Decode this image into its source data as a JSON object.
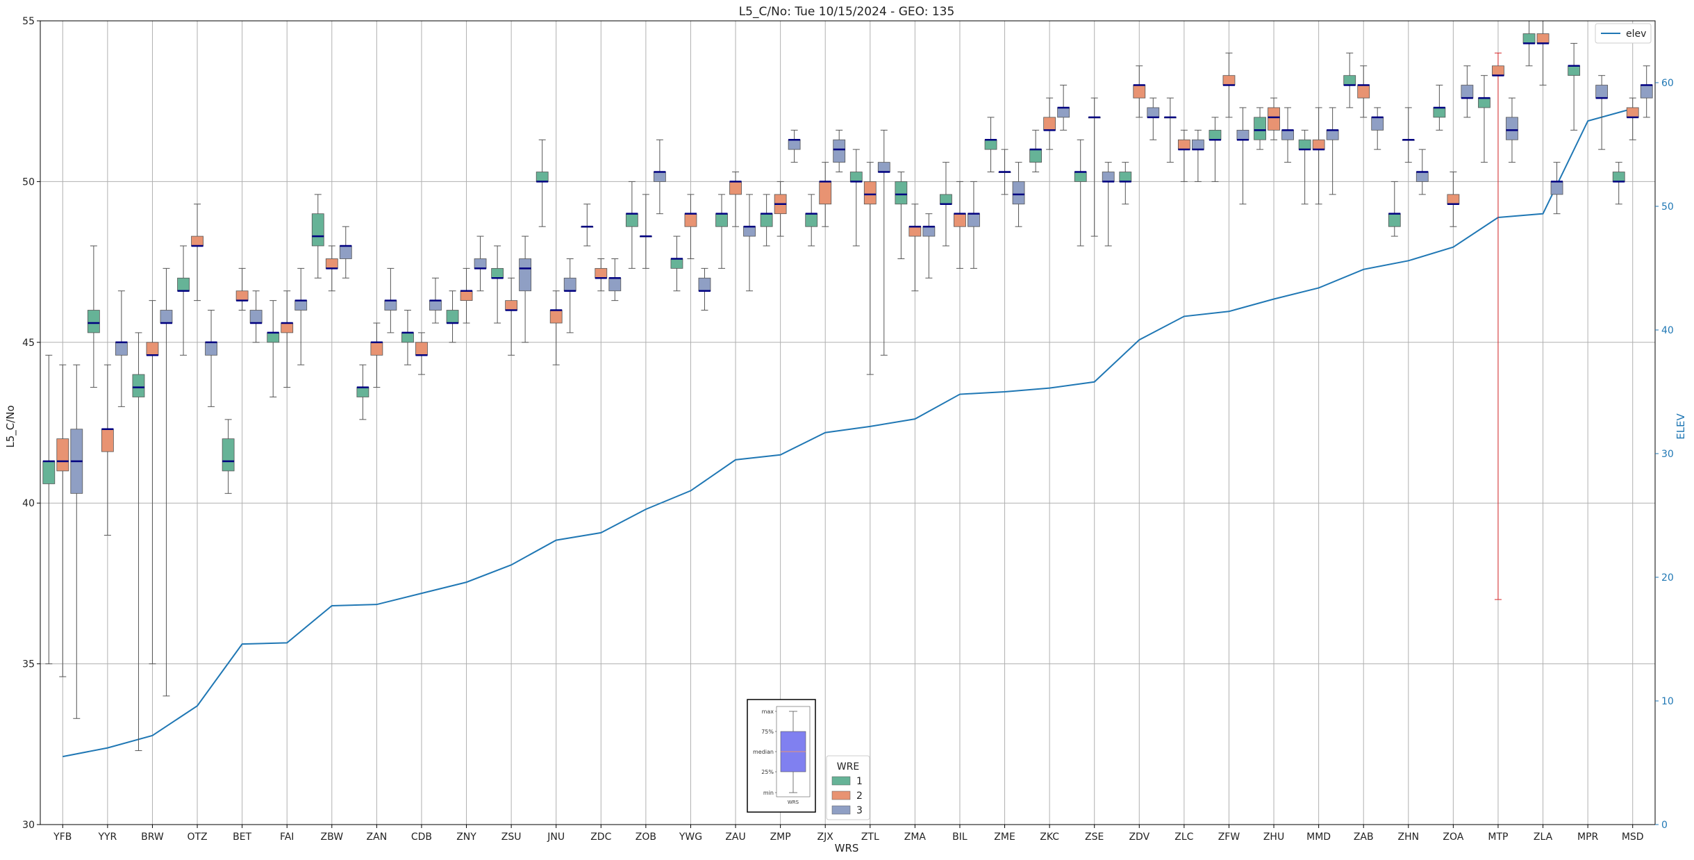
{
  "chart_data": {
    "type": "box",
    "title": "L5_C/No: Tue 10/15/2024 - GEO: 135",
    "xlabel": "WRS",
    "ylabel": "L5_C/No",
    "y2label": "ELEV",
    "ylim": [
      30,
      55
    ],
    "y2lim": [
      0,
      65
    ],
    "yticks": [
      30,
      35,
      40,
      45,
      50,
      55
    ],
    "y2ticks": [
      0,
      10,
      20,
      30,
      40,
      50,
      60
    ],
    "grid": true,
    "categories": [
      "YFB",
      "YYR",
      "BRW",
      "OTZ",
      "BET",
      "FAI",
      "ZBW",
      "ZAN",
      "CDB",
      "ZNY",
      "ZSU",
      "JNU",
      "ZDC",
      "ZOB",
      "YWG",
      "ZAU",
      "ZMP",
      "ZJX",
      "ZTL",
      "ZMA",
      "BIL",
      "ZME",
      "ZKC",
      "ZSE",
      "ZDV",
      "ZLC",
      "ZFW",
      "ZHU",
      "MMD",
      "ZAB",
      "ZHN",
      "ZOA",
      "MTP",
      "ZLA",
      "MPR",
      "MSD"
    ],
    "colors": {
      "1": "#66b397",
      "2": "#e89372",
      "3": "#8f9fc4",
      "elev": "#1f77b4",
      "median": "#000080",
      "whisker": "#555555",
      "outlier_whisker": "#d62728"
    },
    "box_legend": {
      "title": "WRE",
      "entries": [
        "1",
        "2",
        "3"
      ],
      "placement": "bottom-center"
    },
    "line_legend": {
      "entries": [
        "elev"
      ],
      "placement": "top-right"
    },
    "inset_legend": {
      "labels": [
        "max",
        "75%",
        "median",
        "25%",
        "min"
      ],
      "xlabel": "WRS"
    },
    "elev": [
      5.5,
      6.2,
      7.2,
      9.6,
      14.6,
      14.7,
      17.7,
      17.8,
      18.7,
      19.6,
      21.0,
      23.0,
      23.6,
      25.5,
      27.0,
      29.5,
      29.9,
      31.7,
      32.2,
      32.8,
      34.8,
      35.0,
      35.3,
      35.8,
      39.2,
      41.1,
      41.5,
      42.5,
      43.4,
      44.9,
      45.6,
      46.7,
      49.1,
      49.4,
      56.9,
      57.9
    ],
    "boxes": [
      {
        "site": "YFB",
        "wre": 1,
        "min": 35.0,
        "q1": 40.6,
        "med": 41.3,
        "q3": 41.3,
        "max": 44.6
      },
      {
        "site": "YFB",
        "wre": 2,
        "min": 34.6,
        "q1": 41.0,
        "med": 41.3,
        "q3": 42.0,
        "max": 44.3
      },
      {
        "site": "YFB",
        "wre": 3,
        "min": 33.3,
        "q1": 40.3,
        "med": 41.3,
        "q3": 42.3,
        "max": 44.3
      },
      {
        "site": "YYR",
        "wre": 1,
        "min": 43.6,
        "q1": 45.3,
        "med": 45.6,
        "q3": 46.0,
        "max": 48.0
      },
      {
        "site": "YYR",
        "wre": 2,
        "min": 39.0,
        "q1": 41.6,
        "med": 42.3,
        "q3": 42.3,
        "max": 44.3
      },
      {
        "site": "YYR",
        "wre": 3,
        "min": 43.0,
        "q1": 44.6,
        "med": 45.0,
        "q3": 45.0,
        "max": 46.6
      },
      {
        "site": "BRW",
        "wre": 1,
        "min": 32.3,
        "q1": 43.3,
        "med": 43.6,
        "q3": 44.0,
        "max": 45.3
      },
      {
        "site": "BRW",
        "wre": 2,
        "min": 35.0,
        "q1": 44.6,
        "med": 44.6,
        "q3": 45.0,
        "max": 46.3
      },
      {
        "site": "BRW",
        "wre": 3,
        "min": 34.0,
        "q1": 45.6,
        "med": 45.6,
        "q3": 46.0,
        "max": 47.3
      },
      {
        "site": "OTZ",
        "wre": 1,
        "min": 44.6,
        "q1": 46.6,
        "med": 46.6,
        "q3": 47.0,
        "max": 48.0
      },
      {
        "site": "OTZ",
        "wre": 2,
        "min": 46.3,
        "q1": 48.0,
        "med": 48.0,
        "q3": 48.3,
        "max": 49.3
      },
      {
        "site": "OTZ",
        "wre": 3,
        "min": 43.0,
        "q1": 44.6,
        "med": 45.0,
        "q3": 45.0,
        "max": 46.0
      },
      {
        "site": "BET",
        "wre": 1,
        "min": 40.3,
        "q1": 41.0,
        "med": 41.3,
        "q3": 42.0,
        "max": 42.6
      },
      {
        "site": "BET",
        "wre": 2,
        "min": 46.0,
        "q1": 46.3,
        "med": 46.3,
        "q3": 46.6,
        "max": 47.3
      },
      {
        "site": "BET",
        "wre": 3,
        "min": 45.0,
        "q1": 45.6,
        "med": 45.6,
        "q3": 46.0,
        "max": 46.6
      },
      {
        "site": "FAI",
        "wre": 1,
        "min": 43.3,
        "q1": 45.0,
        "med": 45.3,
        "q3": 45.3,
        "max": 46.3
      },
      {
        "site": "FAI",
        "wre": 2,
        "min": 43.6,
        "q1": 45.3,
        "med": 45.6,
        "q3": 45.6,
        "max": 46.6
      },
      {
        "site": "FAI",
        "wre": 3,
        "min": 44.3,
        "q1": 46.0,
        "med": 46.3,
        "q3": 46.3,
        "max": 47.3
      },
      {
        "site": "ZBW",
        "wre": 1,
        "min": 47.0,
        "q1": 48.0,
        "med": 48.3,
        "q3": 49.0,
        "max": 49.6
      },
      {
        "site": "ZBW",
        "wre": 2,
        "min": 46.6,
        "q1": 47.3,
        "med": 47.3,
        "q3": 47.6,
        "max": 48.0
      },
      {
        "site": "ZBW",
        "wre": 3,
        "min": 47.0,
        "q1": 47.6,
        "med": 48.0,
        "q3": 48.0,
        "max": 48.6
      },
      {
        "site": "ZAN",
        "wre": 1,
        "min": 42.6,
        "q1": 43.3,
        "med": 43.6,
        "q3": 43.6,
        "max": 44.3
      },
      {
        "site": "ZAN",
        "wre": 2,
        "min": 43.6,
        "q1": 44.6,
        "med": 45.0,
        "q3": 45.0,
        "max": 45.6
      },
      {
        "site": "ZAN",
        "wre": 3,
        "min": 45.3,
        "q1": 46.0,
        "med": 46.3,
        "q3": 46.3,
        "max": 47.3
      },
      {
        "site": "CDB",
        "wre": 1,
        "min": 44.3,
        "q1": 45.0,
        "med": 45.3,
        "q3": 45.3,
        "max": 46.0
      },
      {
        "site": "CDB",
        "wre": 2,
        "min": 44.0,
        "q1": 44.6,
        "med": 44.6,
        "q3": 45.0,
        "max": 45.3
      },
      {
        "site": "CDB",
        "wre": 3,
        "min": 45.6,
        "q1": 46.0,
        "med": 46.3,
        "q3": 46.3,
        "max": 47.0
      },
      {
        "site": "ZNY",
        "wre": 1,
        "min": 45.0,
        "q1": 45.6,
        "med": 45.6,
        "q3": 46.0,
        "max": 46.6
      },
      {
        "site": "ZNY",
        "wre": 2,
        "min": 45.6,
        "q1": 46.3,
        "med": 46.6,
        "q3": 46.6,
        "max": 47.3
      },
      {
        "site": "ZNY",
        "wre": 3,
        "min": 46.6,
        "q1": 47.3,
        "med": 47.3,
        "q3": 47.6,
        "max": 48.3
      },
      {
        "site": "ZSU",
        "wre": 1,
        "min": 45.6,
        "q1": 47.0,
        "med": 47.0,
        "q3": 47.3,
        "max": 48.0
      },
      {
        "site": "ZSU",
        "wre": 2,
        "min": 44.6,
        "q1": 46.0,
        "med": 46.0,
        "q3": 46.3,
        "max": 47.0
      },
      {
        "site": "ZSU",
        "wre": 3,
        "min": 45.0,
        "q1": 46.6,
        "med": 47.3,
        "q3": 47.6,
        "max": 48.3
      },
      {
        "site": "JNU",
        "wre": 1,
        "min": 48.6,
        "q1": 50.0,
        "med": 50.0,
        "q3": 50.3,
        "max": 51.3
      },
      {
        "site": "JNU",
        "wre": 2,
        "min": 44.3,
        "q1": 45.6,
        "med": 46.0,
        "q3": 46.0,
        "max": 46.6
      },
      {
        "site": "JNU",
        "wre": 3,
        "min": 45.3,
        "q1": 46.6,
        "med": 46.6,
        "q3": 47.0,
        "max": 47.6
      },
      {
        "site": "ZDC",
        "wre": 1,
        "min": 48.0,
        "q1": 48.6,
        "med": 48.6,
        "q3": 48.6,
        "max": 49.3
      },
      {
        "site": "ZDC",
        "wre": 2,
        "min": 46.6,
        "q1": 47.0,
        "med": 47.0,
        "q3": 47.3,
        "max": 47.6
      },
      {
        "site": "ZDC",
        "wre": 3,
        "min": 46.3,
        "q1": 46.6,
        "med": 47.0,
        "q3": 47.0,
        "max": 47.6
      },
      {
        "site": "ZOB",
        "wre": 1,
        "min": 47.3,
        "q1": 48.6,
        "med": 49.0,
        "q3": 49.0,
        "max": 50.0
      },
      {
        "site": "ZOB",
        "wre": 2,
        "min": 47.3,
        "q1": 48.3,
        "med": 48.3,
        "q3": 48.3,
        "max": 49.6
      },
      {
        "site": "ZOB",
        "wre": 3,
        "min": 49.0,
        "q1": 50.0,
        "med": 50.3,
        "q3": 50.3,
        "max": 51.3
      },
      {
        "site": "YWG",
        "wre": 1,
        "min": 46.6,
        "q1": 47.3,
        "med": 47.6,
        "q3": 47.6,
        "max": 48.3
      },
      {
        "site": "YWG",
        "wre": 2,
        "min": 47.6,
        "q1": 48.6,
        "med": 49.0,
        "q3": 49.0,
        "max": 49.6
      },
      {
        "site": "YWG",
        "wre": 3,
        "min": 46.0,
        "q1": 46.6,
        "med": 46.6,
        "q3": 47.0,
        "max": 47.3
      },
      {
        "site": "ZAU",
        "wre": 1,
        "min": 47.3,
        "q1": 48.6,
        "med": 49.0,
        "q3": 49.0,
        "max": 49.6
      },
      {
        "site": "ZAU",
        "wre": 2,
        "min": 48.6,
        "q1": 49.6,
        "med": 50.0,
        "q3": 50.0,
        "max": 50.3
      },
      {
        "site": "ZAU",
        "wre": 3,
        "min": 46.6,
        "q1": 48.3,
        "med": 48.6,
        "q3": 48.6,
        "max": 49.6
      },
      {
        "site": "ZMP",
        "wre": 1,
        "min": 48.0,
        "q1": 48.6,
        "med": 49.0,
        "q3": 49.0,
        "max": 49.6
      },
      {
        "site": "ZMP",
        "wre": 2,
        "min": 48.3,
        "q1": 49.0,
        "med": 49.3,
        "q3": 49.6,
        "max": 50.0
      },
      {
        "site": "ZMP",
        "wre": 3,
        "min": 50.6,
        "q1": 51.0,
        "med": 51.3,
        "q3": 51.3,
        "max": 51.6
      },
      {
        "site": "ZJX",
        "wre": 1,
        "min": 48.0,
        "q1": 48.6,
        "med": 49.0,
        "q3": 49.0,
        "max": 49.6
      },
      {
        "site": "ZJX",
        "wre": 2,
        "min": 48.6,
        "q1": 49.3,
        "med": 50.0,
        "q3": 50.0,
        "max": 50.6
      },
      {
        "site": "ZJX",
        "wre": 3,
        "min": 50.3,
        "q1": 50.6,
        "med": 51.0,
        "q3": 51.3,
        "max": 51.6
      },
      {
        "site": "ZTL",
        "wre": 1,
        "min": 48.0,
        "q1": 50.0,
        "med": 50.0,
        "q3": 50.3,
        "max": 51.0
      },
      {
        "site": "ZTL",
        "wre": 2,
        "min": 44.0,
        "q1": 49.3,
        "med": 49.6,
        "q3": 50.0,
        "max": 50.6
      },
      {
        "site": "ZTL",
        "wre": 3,
        "min": 44.6,
        "q1": 50.3,
        "med": 50.3,
        "q3": 50.6,
        "max": 51.6
      },
      {
        "site": "ZMA",
        "wre": 1,
        "min": 47.6,
        "q1": 49.3,
        "med": 49.6,
        "q3": 50.0,
        "max": 50.3
      },
      {
        "site": "ZMA",
        "wre": 2,
        "min": 46.6,
        "q1": 48.3,
        "med": 48.6,
        "q3": 48.6,
        "max": 49.3
      },
      {
        "site": "ZMA",
        "wre": 3,
        "min": 47.0,
        "q1": 48.3,
        "med": 48.6,
        "q3": 48.6,
        "max": 49.0
      },
      {
        "site": "BIL",
        "wre": 1,
        "min": 48.0,
        "q1": 49.3,
        "med": 49.3,
        "q3": 49.6,
        "max": 50.6
      },
      {
        "site": "BIL",
        "wre": 2,
        "min": 47.3,
        "q1": 48.6,
        "med": 49.0,
        "q3": 49.0,
        "max": 50.0
      },
      {
        "site": "BIL",
        "wre": 3,
        "min": 47.3,
        "q1": 48.6,
        "med": 49.0,
        "q3": 49.0,
        "max": 50.0
      },
      {
        "site": "ZME",
        "wre": 1,
        "min": 50.3,
        "q1": 51.0,
        "med": 51.3,
        "q3": 51.3,
        "max": 52.0
      },
      {
        "site": "ZME",
        "wre": 2,
        "min": 49.6,
        "q1": 50.3,
        "med": 50.3,
        "q3": 50.3,
        "max": 51.0
      },
      {
        "site": "ZME",
        "wre": 3,
        "min": 48.6,
        "q1": 49.3,
        "med": 49.6,
        "q3": 50.0,
        "max": 50.6
      },
      {
        "site": "ZKC",
        "wre": 1,
        "min": 50.3,
        "q1": 50.6,
        "med": 51.0,
        "q3": 51.0,
        "max": 51.6
      },
      {
        "site": "ZKC",
        "wre": 2,
        "min": 51.0,
        "q1": 51.6,
        "med": 51.6,
        "q3": 52.0,
        "max": 52.6
      },
      {
        "site": "ZKC",
        "wre": 3,
        "min": 51.6,
        "q1": 52.0,
        "med": 52.3,
        "q3": 52.3,
        "max": 53.0
      },
      {
        "site": "ZSE",
        "wre": 1,
        "min": 48.0,
        "q1": 50.0,
        "med": 50.3,
        "q3": 50.3,
        "max": 51.3
      },
      {
        "site": "ZSE",
        "wre": 2,
        "min": 48.3,
        "q1": 52.0,
        "med": 52.0,
        "q3": 52.0,
        "max": 52.6
      },
      {
        "site": "ZSE",
        "wre": 3,
        "min": 48.0,
        "q1": 50.0,
        "med": 50.0,
        "q3": 50.3,
        "max": 50.6
      },
      {
        "site": "ZDV",
        "wre": 1,
        "min": 49.3,
        "q1": 50.0,
        "med": 50.0,
        "q3": 50.3,
        "max": 50.6
      },
      {
        "site": "ZDV",
        "wre": 2,
        "min": 52.0,
        "q1": 52.6,
        "med": 53.0,
        "q3": 53.0,
        "max": 53.6
      },
      {
        "site": "ZDV",
        "wre": 3,
        "min": 51.3,
        "q1": 52.0,
        "med": 52.0,
        "q3": 52.3,
        "max": 52.6
      },
      {
        "site": "ZLC",
        "wre": 1,
        "min": 50.6,
        "q1": 52.0,
        "med": 52.0,
        "q3": 52.0,
        "max": 52.6
      },
      {
        "site": "ZLC",
        "wre": 2,
        "min": 50.0,
        "q1": 51.0,
        "med": 51.0,
        "q3": 51.3,
        "max": 51.6
      },
      {
        "site": "ZLC",
        "wre": 3,
        "min": 50.0,
        "q1": 51.0,
        "med": 51.0,
        "q3": 51.3,
        "max": 51.6
      },
      {
        "site": "ZFW",
        "wre": 1,
        "min": 50.0,
        "q1": 51.3,
        "med": 51.3,
        "q3": 51.6,
        "max": 52.0
      },
      {
        "site": "ZFW",
        "wre": 2,
        "min": 52.0,
        "q1": 53.0,
        "med": 53.0,
        "q3": 53.3,
        "max": 54.0
      },
      {
        "site": "ZFW",
        "wre": 3,
        "min": 49.3,
        "q1": 51.3,
        "med": 51.3,
        "q3": 51.6,
        "max": 52.3
      },
      {
        "site": "ZHU",
        "wre": 1,
        "min": 51.0,
        "q1": 51.3,
        "med": 51.6,
        "q3": 52.0,
        "max": 52.3
      },
      {
        "site": "ZHU",
        "wre": 2,
        "min": 51.3,
        "q1": 51.6,
        "med": 52.0,
        "q3": 52.3,
        "max": 52.6
      },
      {
        "site": "ZHU",
        "wre": 3,
        "min": 50.6,
        "q1": 51.3,
        "med": 51.6,
        "q3": 51.6,
        "max": 52.3
      },
      {
        "site": "MMD",
        "wre": 1,
        "min": 49.3,
        "q1": 51.0,
        "med": 51.0,
        "q3": 51.3,
        "max": 51.6
      },
      {
        "site": "MMD",
        "wre": 2,
        "min": 49.3,
        "q1": 51.0,
        "med": 51.0,
        "q3": 51.3,
        "max": 52.3
      },
      {
        "site": "MMD",
        "wre": 3,
        "min": 49.6,
        "q1": 51.3,
        "med": 51.6,
        "q3": 51.6,
        "max": 52.3
      },
      {
        "site": "ZAB",
        "wre": 1,
        "min": 52.3,
        "q1": 53.0,
        "med": 53.0,
        "q3": 53.3,
        "max": 54.0
      },
      {
        "site": "ZAB",
        "wre": 2,
        "min": 52.0,
        "q1": 52.6,
        "med": 53.0,
        "q3": 53.0,
        "max": 53.6
      },
      {
        "site": "ZAB",
        "wre": 3,
        "min": 51.0,
        "q1": 51.6,
        "med": 52.0,
        "q3": 52.0,
        "max": 52.3
      },
      {
        "site": "ZHN",
        "wre": 1,
        "min": 48.3,
        "q1": 48.6,
        "med": 49.0,
        "q3": 49.0,
        "max": 50.0
      },
      {
        "site": "ZHN",
        "wre": 2,
        "min": 50.6,
        "q1": 51.3,
        "med": 51.3,
        "q3": 51.3,
        "max": 52.3
      },
      {
        "site": "ZHN",
        "wre": 3,
        "min": 49.6,
        "q1": 50.0,
        "med": 50.3,
        "q3": 50.3,
        "max": 51.0
      },
      {
        "site": "ZOA",
        "wre": 1,
        "min": 51.6,
        "q1": 52.0,
        "med": 52.3,
        "q3": 52.3,
        "max": 53.0
      },
      {
        "site": "ZOA",
        "wre": 2,
        "min": 48.6,
        "q1": 49.3,
        "med": 49.3,
        "q3": 49.6,
        "max": 50.3
      },
      {
        "site": "ZOA",
        "wre": 3,
        "min": 52.0,
        "q1": 52.6,
        "med": 52.6,
        "q3": 53.0,
        "max": 53.6
      },
      {
        "site": "MTP",
        "wre": 1,
        "min": 50.6,
        "q1": 52.3,
        "med": 52.6,
        "q3": 52.6,
        "max": 53.3
      },
      {
        "site": "MTP",
        "wre": 2,
        "min": 37.0,
        "q1": 53.3,
        "med": 53.3,
        "q3": 53.6,
        "max": 54.0
      },
      {
        "site": "MTP",
        "wre": 3,
        "min": 50.6,
        "q1": 51.3,
        "med": 51.6,
        "q3": 52.0,
        "max": 52.6
      },
      {
        "site": "ZLA",
        "wre": 1,
        "min": 53.6,
        "q1": 54.3,
        "med": 54.3,
        "q3": 54.6,
        "max": 55.0
      },
      {
        "site": "ZLA",
        "wre": 2,
        "min": 53.0,
        "q1": 54.3,
        "med": 54.3,
        "q3": 54.6,
        "max": 55.0
      },
      {
        "site": "ZLA",
        "wre": 3,
        "min": 49.0,
        "q1": 49.6,
        "med": 50.0,
        "q3": 50.0,
        "max": 50.6
      },
      {
        "site": "MPR",
        "wre": 1,
        "min": 51.6,
        "q1": 53.3,
        "med": 53.6,
        "q3": 53.6,
        "max": 54.3
      },
      {
        "site": "MPR",
        "wre": 2,
        "min": null,
        "q1": null,
        "med": null,
        "q3": null,
        "max": null
      },
      {
        "site": "MPR",
        "wre": 3,
        "min": 51.0,
        "q1": 52.6,
        "med": 52.6,
        "q3": 53.0,
        "max": 53.3
      },
      {
        "site": "MSD",
        "wre": 1,
        "min": 49.3,
        "q1": 50.0,
        "med": 50.0,
        "q3": 50.3,
        "max": 50.6
      },
      {
        "site": "MSD",
        "wre": 2,
        "min": 51.3,
        "q1": 52.0,
        "med": 52.0,
        "q3": 52.3,
        "max": 52.6
      },
      {
        "site": "MSD",
        "wre": 3,
        "min": 52.0,
        "q1": 52.6,
        "med": 53.0,
        "q3": 53.0,
        "max": 53.6
      }
    ]
  }
}
